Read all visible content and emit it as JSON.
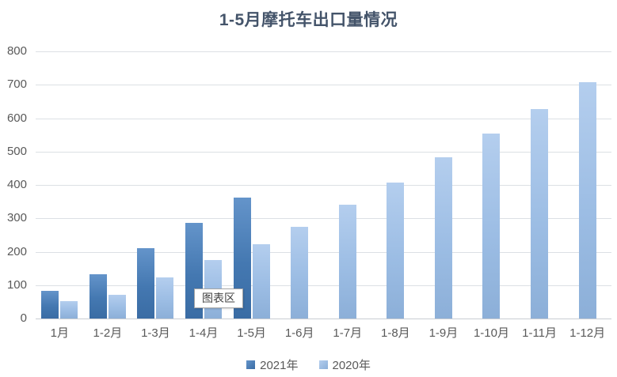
{
  "chart_data": {
    "type": "bar",
    "title": "1-5月摩托车出口量情况",
    "categories": [
      "1月",
      "1-2月",
      "1-3月",
      "1-4月",
      "1-5月",
      "1-6月",
      "1-7月",
      "1-8月",
      "1-9月",
      "1-10月",
      "1-11月",
      "1-12月"
    ],
    "series": [
      {
        "name": "2021年",
        "values": [
          82,
          132,
          210,
          287,
          362,
          null,
          null,
          null,
          null,
          null,
          null,
          null
        ]
      },
      {
        "name": "2020年",
        "values": [
          53,
          70,
          122,
          175,
          222,
          275,
          340,
          408,
          483,
          553,
          628,
          707
        ]
      }
    ],
    "ylim": [
      0,
      800
    ],
    "yticks": [
      800,
      700,
      600,
      500,
      400,
      300,
      200,
      100,
      0
    ],
    "grid": true,
    "legend_position": "bottom"
  },
  "tooltip": {
    "text": "图表区"
  },
  "colors": {
    "title_text": "#44546A",
    "axis_text": "#595959",
    "gridline": "#DCE0E4",
    "series_2021": "#3E74B0",
    "series_2020": "#9CBDE4",
    "tooltip_border": "#A6A6A6",
    "tooltip_bg": "#FFFFFF"
  }
}
